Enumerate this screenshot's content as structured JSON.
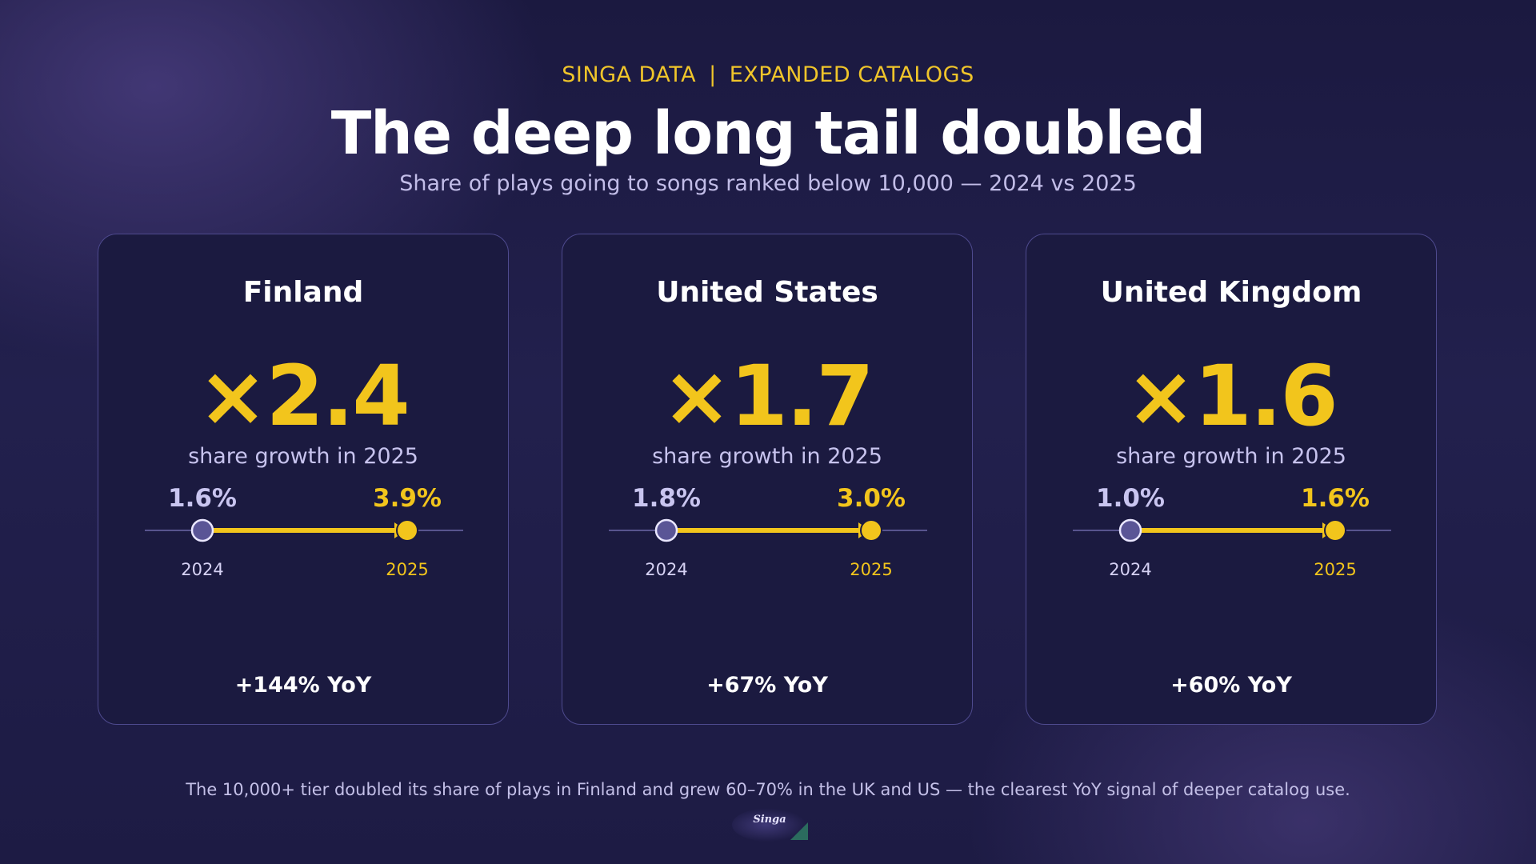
{
  "header": {
    "brand": "SINGA DATA",
    "separator": "|",
    "section": "EXPANDED CATALOGS",
    "title": "The deep long tail doubled",
    "subtitle": "Share of plays going to songs ranked below 10,000 — 2024 vs 2025"
  },
  "chart_data": [
    {
      "type": "line",
      "title": "Finland",
      "multiplier": "×2.4",
      "caption": "share growth in 2025",
      "x": [
        "2024",
        "2025"
      ],
      "values": [
        1.6,
        3.9
      ],
      "value_labels": [
        "1.6%",
        "3.9%"
      ],
      "yoy": "+144% YoY"
    },
    {
      "type": "line",
      "title": "United States",
      "multiplier": "×1.7",
      "caption": "share growth in 2025",
      "x": [
        "2024",
        "2025"
      ],
      "values": [
        1.8,
        3.0
      ],
      "value_labels": [
        "1.8%",
        "3.0%"
      ],
      "yoy": "+67% YoY"
    },
    {
      "type": "line",
      "title": "United Kingdom",
      "multiplier": "×1.6",
      "caption": "share growth in 2025",
      "x": [
        "2024",
        "2025"
      ],
      "values": [
        1.0,
        1.6
      ],
      "value_labels": [
        "1.0%",
        "1.6%"
      ],
      "yoy": "+60% YoY"
    }
  ],
  "colors": {
    "accent": "#f2c51c",
    "point_2024": "#5a5596",
    "baseline": "#6c67a8",
    "label_2024": "#c9c5f0"
  },
  "footnote": "The 10,000+ tier doubled its share of plays in Finland and grew 60–70% in the UK and US — the clearest YoY signal of deeper catalog use.",
  "logo": {
    "text": "Singa"
  }
}
